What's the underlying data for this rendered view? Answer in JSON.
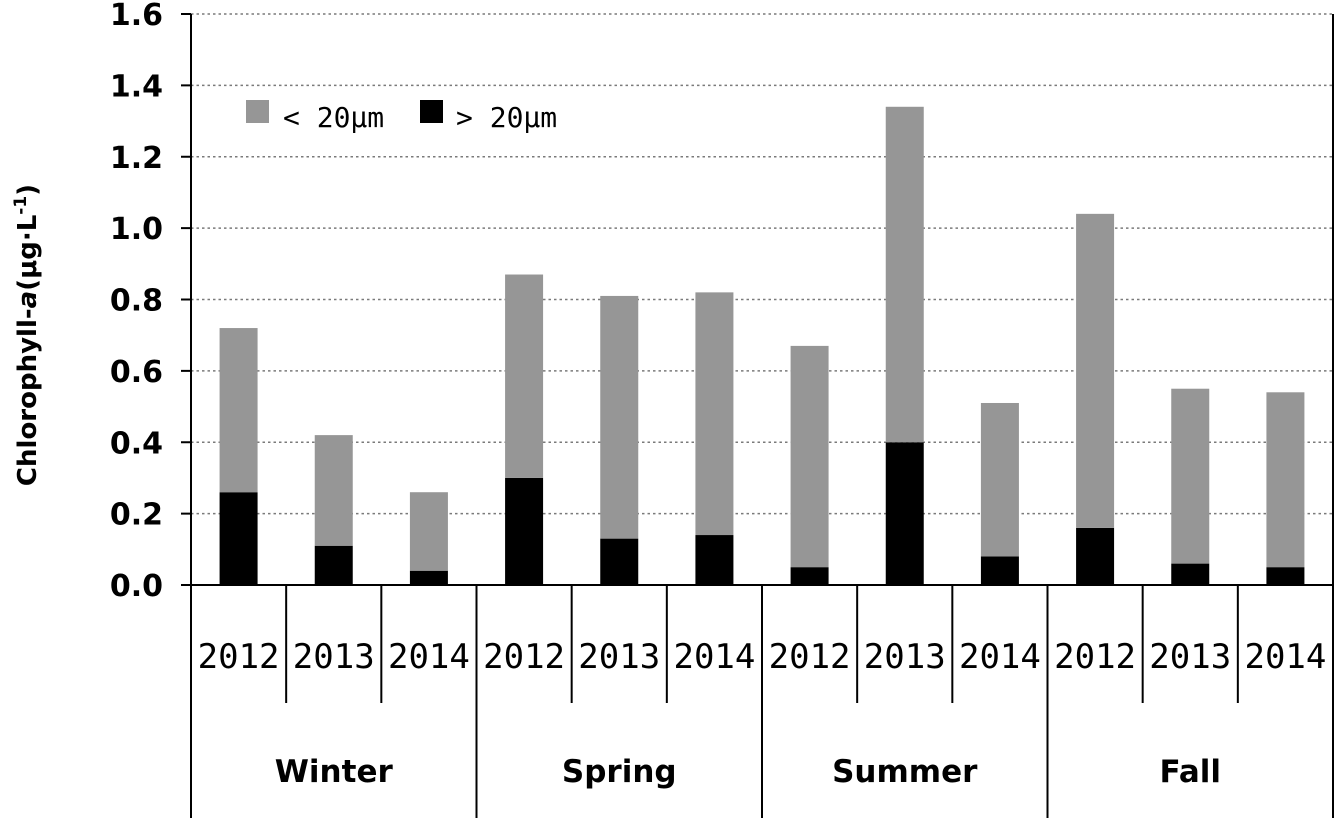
{
  "chart_data": {
    "type": "bar",
    "stacked": true,
    "title": "",
    "xlabel": "",
    "ylabel_prefix": "Chlorophyll-",
    "ylabel_italic": "a",
    "ylabel_unit": "(μg·L",
    "ylabel_exp": "-1",
    "ylabel_close": ")",
    "ylim": [
      0,
      1.6
    ],
    "yticks": [
      "0.0",
      "0.2",
      "0.4",
      "0.6",
      "0.8",
      "1.0",
      "1.2",
      "1.4",
      "1.6"
    ],
    "grid": true,
    "legend_position": "top-left",
    "groups": [
      {
        "name": "Winter",
        "years": [
          "2012",
          "2013",
          "2014"
        ]
      },
      {
        "name": "Spring",
        "years": [
          "2012",
          "2013",
          "2014"
        ]
      },
      {
        "name": "Summer",
        "years": [
          "2012",
          "2013",
          "2014"
        ]
      },
      {
        "name": "Fall",
        "years": [
          "2012",
          "2013",
          "2014"
        ]
      }
    ],
    "series": [
      {
        "name": "> 20μm",
        "color": "#000000",
        "values": [
          0.26,
          0.11,
          0.04,
          0.3,
          0.13,
          0.14,
          0.05,
          0.4,
          0.08,
          0.16,
          0.06,
          0.05
        ]
      },
      {
        "name": "< 20μm",
        "color": "#969696",
        "values": [
          0.46,
          0.31,
          0.22,
          0.57,
          0.68,
          0.68,
          0.62,
          0.94,
          0.43,
          0.88,
          0.49,
          0.49
        ]
      }
    ],
    "legend": [
      {
        "label": "< 20μm",
        "color": "#969696"
      },
      {
        "label": "> 20μm",
        "color": "#000000"
      }
    ]
  }
}
